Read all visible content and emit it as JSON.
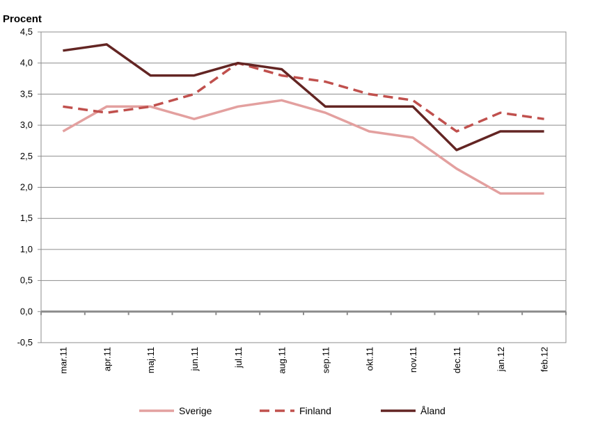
{
  "chart_data": {
    "type": "line",
    "ylabel": "Procent",
    "ylim": [
      -0.5,
      4.5
    ],
    "yticks": [
      {
        "value": 4.5,
        "label": "4,5"
      },
      {
        "value": 4.0,
        "label": "4,0"
      },
      {
        "value": 3.5,
        "label": "3,5"
      },
      {
        "value": 3.0,
        "label": "3,0"
      },
      {
        "value": 2.5,
        "label": "2,5"
      },
      {
        "value": 2.0,
        "label": "2,0"
      },
      {
        "value": 1.5,
        "label": "1,5"
      },
      {
        "value": 1.0,
        "label": "1,0"
      },
      {
        "value": 0.5,
        "label": "0,5"
      },
      {
        "value": 0.0,
        "label": "0,0"
      },
      {
        "value": -0.5,
        "label": "-0,5"
      }
    ],
    "categories": [
      "mar.11",
      "apr.11",
      "maj.11",
      "jun.11",
      "jul.11",
      "aug.11",
      "sep.11",
      "okt.11",
      "nov.11",
      "dec.11",
      "jan.12",
      "feb.12"
    ],
    "grid": true,
    "legend_position": "bottom",
    "series": [
      {
        "name": "Sverige",
        "color": "#e3a09f",
        "dash": "solid",
        "values": [
          2.9,
          3.3,
          3.3,
          3.1,
          3.3,
          3.4,
          3.2,
          2.9,
          2.8,
          2.3,
          1.9,
          1.9
        ]
      },
      {
        "name": "Finland",
        "color": "#c0504d",
        "dash": "dashed",
        "values": [
          3.3,
          3.2,
          3.3,
          3.5,
          4.0,
          3.8,
          3.7,
          3.5,
          3.4,
          2.9,
          3.2,
          3.1
        ]
      },
      {
        "name": "Åland",
        "color": "#632523",
        "dash": "solid",
        "values": [
          4.2,
          4.3,
          3.8,
          3.8,
          4.0,
          3.9,
          3.3,
          3.3,
          3.3,
          2.6,
          2.9,
          2.9
        ]
      }
    ]
  }
}
